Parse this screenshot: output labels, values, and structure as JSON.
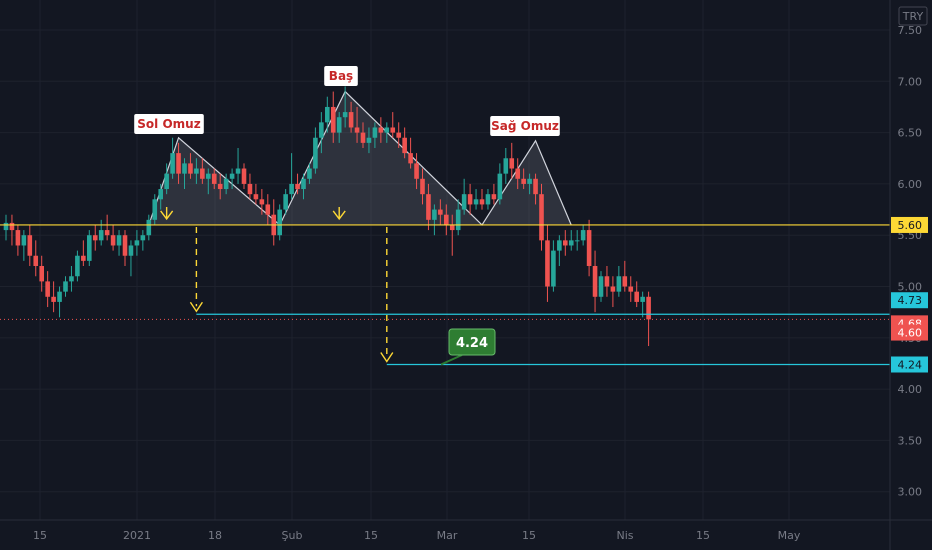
{
  "currency_badge": "TRY",
  "colors": {
    "background": "#131722",
    "grid": "#1e222d",
    "up": "#26a69a",
    "down": "#ef5350",
    "neckline": "#fdd835",
    "target": "#26c6da",
    "pattern_fill": "#787b86",
    "label_text": "#c62828",
    "target_label_bg": "#2e7d32"
  },
  "chart_data": {
    "type": "candlestick",
    "symbol_currency": "TRY",
    "y_axis": {
      "range": [
        2.9,
        7.5
      ],
      "ticks": [
        3.0,
        3.5,
        4.0,
        4.5,
        5.0,
        5.5,
        6.0,
        6.5,
        7.0,
        7.5
      ],
      "tick_labels": [
        "3.00",
        "3.50",
        "4.00",
        "4.50",
        "5.00",
        "5.50",
        "6.00",
        "6.50",
        "7.00",
        "7.50"
      ]
    },
    "x_axis": {
      "tick_labels": [
        "15",
        "2021",
        "18",
        "Şub",
        "15",
        "Mar",
        "15",
        "Nis",
        "15",
        "May"
      ]
    },
    "candles": [
      {
        "o": 5.55,
        "h": 5.7,
        "l": 5.45,
        "c": 5.62
      },
      {
        "o": 5.62,
        "h": 5.7,
        "l": 5.4,
        "c": 5.55
      },
      {
        "o": 5.55,
        "h": 5.6,
        "l": 5.3,
        "c": 5.4
      },
      {
        "o": 5.4,
        "h": 5.55,
        "l": 5.25,
        "c": 5.5
      },
      {
        "o": 5.5,
        "h": 5.6,
        "l": 5.2,
        "c": 5.3
      },
      {
        "o": 5.3,
        "h": 5.45,
        "l": 5.1,
        "c": 5.2
      },
      {
        "o": 5.2,
        "h": 5.3,
        "l": 4.95,
        "c": 5.05
      },
      {
        "o": 5.05,
        "h": 5.15,
        "l": 4.8,
        "c": 4.9
      },
      {
        "o": 4.9,
        "h": 5.05,
        "l": 4.75,
        "c": 4.85
      },
      {
        "o": 4.85,
        "h": 5.0,
        "l": 4.7,
        "c": 4.95
      },
      {
        "o": 4.95,
        "h": 5.1,
        "l": 4.9,
        "c": 5.05
      },
      {
        "o": 5.05,
        "h": 5.2,
        "l": 4.95,
        "c": 5.1
      },
      {
        "o": 5.1,
        "h": 5.35,
        "l": 5.05,
        "c": 5.3
      },
      {
        "o": 5.3,
        "h": 5.45,
        "l": 5.2,
        "c": 5.25
      },
      {
        "o": 5.25,
        "h": 5.55,
        "l": 5.2,
        "c": 5.5
      },
      {
        "o": 5.5,
        "h": 5.6,
        "l": 5.35,
        "c": 5.45
      },
      {
        "o": 5.45,
        "h": 5.65,
        "l": 5.4,
        "c": 5.55
      },
      {
        "o": 5.55,
        "h": 5.7,
        "l": 5.45,
        "c": 5.5
      },
      {
        "o": 5.5,
        "h": 5.6,
        "l": 5.35,
        "c": 5.4
      },
      {
        "o": 5.4,
        "h": 5.55,
        "l": 5.3,
        "c": 5.5
      },
      {
        "o": 5.5,
        "h": 5.55,
        "l": 5.2,
        "c": 5.3
      },
      {
        "o": 5.3,
        "h": 5.45,
        "l": 5.1,
        "c": 5.4
      },
      {
        "o": 5.4,
        "h": 5.55,
        "l": 5.3,
        "c": 5.45
      },
      {
        "o": 5.45,
        "h": 5.55,
        "l": 5.35,
        "c": 5.5
      },
      {
        "o": 5.5,
        "h": 5.7,
        "l": 5.45,
        "c": 5.65
      },
      {
        "o": 5.65,
        "h": 5.9,
        "l": 5.6,
        "c": 5.85
      },
      {
        "o": 5.85,
        "h": 6.0,
        "l": 5.75,
        "c": 5.95
      },
      {
        "o": 5.95,
        "h": 6.2,
        "l": 5.9,
        "c": 6.1
      },
      {
        "o": 6.1,
        "h": 6.45,
        "l": 6.05,
        "c": 6.3
      },
      {
        "o": 6.3,
        "h": 6.4,
        "l": 6.0,
        "c": 6.1
      },
      {
        "o": 6.1,
        "h": 6.25,
        "l": 5.95,
        "c": 6.2
      },
      {
        "o": 6.2,
        "h": 6.3,
        "l": 6.05,
        "c": 6.1
      },
      {
        "o": 6.1,
        "h": 6.25,
        "l": 6.0,
        "c": 6.15
      },
      {
        "o": 6.15,
        "h": 6.25,
        "l": 6.0,
        "c": 6.05
      },
      {
        "o": 6.05,
        "h": 6.15,
        "l": 5.9,
        "c": 6.1
      },
      {
        "o": 6.1,
        "h": 6.15,
        "l": 5.95,
        "c": 6.0
      },
      {
        "o": 6.0,
        "h": 6.1,
        "l": 5.85,
        "c": 5.95
      },
      {
        "o": 5.95,
        "h": 6.1,
        "l": 5.9,
        "c": 6.05
      },
      {
        "o": 6.05,
        "h": 6.15,
        "l": 5.95,
        "c": 6.1
      },
      {
        "o": 6.1,
        "h": 6.35,
        "l": 6.0,
        "c": 6.15
      },
      {
        "o": 6.15,
        "h": 6.2,
        "l": 5.95,
        "c": 6.0
      },
      {
        "o": 6.0,
        "h": 6.1,
        "l": 5.85,
        "c": 5.9
      },
      {
        "o": 5.9,
        "h": 6.0,
        "l": 5.8,
        "c": 5.85
      },
      {
        "o": 5.85,
        "h": 5.95,
        "l": 5.7,
        "c": 5.8
      },
      {
        "o": 5.8,
        "h": 5.9,
        "l": 5.6,
        "c": 5.7
      },
      {
        "o": 5.7,
        "h": 5.85,
        "l": 5.4,
        "c": 5.5
      },
      {
        "o": 5.5,
        "h": 5.8,
        "l": 5.45,
        "c": 5.75
      },
      {
        "o": 5.75,
        "h": 5.95,
        "l": 5.7,
        "c": 5.9
      },
      {
        "o": 5.9,
        "h": 6.3,
        "l": 5.85,
        "c": 6.0
      },
      {
        "o": 6.0,
        "h": 6.1,
        "l": 5.9,
        "c": 5.95
      },
      {
        "o": 5.95,
        "h": 6.1,
        "l": 5.85,
        "c": 6.05
      },
      {
        "o": 6.05,
        "h": 6.2,
        "l": 6.0,
        "c": 6.15
      },
      {
        "o": 6.15,
        "h": 6.55,
        "l": 6.1,
        "c": 6.45
      },
      {
        "o": 6.45,
        "h": 6.7,
        "l": 6.3,
        "c": 6.6
      },
      {
        "o": 6.6,
        "h": 6.85,
        "l": 6.5,
        "c": 6.75
      },
      {
        "o": 6.75,
        "h": 6.9,
        "l": 6.4,
        "c": 6.5
      },
      {
        "o": 6.5,
        "h": 6.7,
        "l": 6.4,
        "c": 6.65
      },
      {
        "o": 6.65,
        "h": 6.95,
        "l": 6.55,
        "c": 6.7
      },
      {
        "o": 6.7,
        "h": 6.8,
        "l": 6.5,
        "c": 6.55
      },
      {
        "o": 6.55,
        "h": 6.75,
        "l": 6.4,
        "c": 6.5
      },
      {
        "o": 6.5,
        "h": 6.6,
        "l": 6.35,
        "c": 6.4
      },
      {
        "o": 6.4,
        "h": 6.55,
        "l": 6.3,
        "c": 6.45
      },
      {
        "o": 6.45,
        "h": 6.6,
        "l": 6.35,
        "c": 6.55
      },
      {
        "o": 6.55,
        "h": 6.65,
        "l": 6.4,
        "c": 6.5
      },
      {
        "o": 6.5,
        "h": 6.6,
        "l": 6.4,
        "c": 6.55
      },
      {
        "o": 6.55,
        "h": 6.7,
        "l": 6.45,
        "c": 6.5
      },
      {
        "o": 6.5,
        "h": 6.6,
        "l": 6.35,
        "c": 6.45
      },
      {
        "o": 6.45,
        "h": 6.55,
        "l": 6.25,
        "c": 6.3
      },
      {
        "o": 6.3,
        "h": 6.45,
        "l": 6.15,
        "c": 6.2
      },
      {
        "o": 6.2,
        "h": 6.3,
        "l": 5.95,
        "c": 6.05
      },
      {
        "o": 6.05,
        "h": 6.15,
        "l": 5.8,
        "c": 5.9
      },
      {
        "o": 5.9,
        "h": 6.0,
        "l": 5.55,
        "c": 5.65
      },
      {
        "o": 5.65,
        "h": 5.8,
        "l": 5.5,
        "c": 5.75
      },
      {
        "o": 5.75,
        "h": 5.85,
        "l": 5.6,
        "c": 5.7
      },
      {
        "o": 5.7,
        "h": 5.8,
        "l": 5.5,
        "c": 5.6
      },
      {
        "o": 5.6,
        "h": 5.7,
        "l": 5.3,
        "c": 5.55
      },
      {
        "o": 5.55,
        "h": 5.85,
        "l": 5.5,
        "c": 5.75
      },
      {
        "o": 5.75,
        "h": 6.05,
        "l": 5.7,
        "c": 5.9
      },
      {
        "o": 5.9,
        "h": 6.0,
        "l": 5.7,
        "c": 5.8
      },
      {
        "o": 5.8,
        "h": 5.95,
        "l": 5.75,
        "c": 5.85
      },
      {
        "o": 5.85,
        "h": 5.95,
        "l": 5.75,
        "c": 5.8
      },
      {
        "o": 5.8,
        "h": 5.95,
        "l": 5.75,
        "c": 5.9
      },
      {
        "o": 5.9,
        "h": 6.0,
        "l": 5.8,
        "c": 5.85
      },
      {
        "o": 5.85,
        "h": 6.2,
        "l": 5.8,
        "c": 6.1
      },
      {
        "o": 6.1,
        "h": 6.35,
        "l": 6.0,
        "c": 6.25
      },
      {
        "o": 6.25,
        "h": 6.4,
        "l": 6.05,
        "c": 6.15
      },
      {
        "o": 6.15,
        "h": 6.25,
        "l": 5.95,
        "c": 6.05
      },
      {
        "o": 6.05,
        "h": 6.15,
        "l": 5.95,
        "c": 6.0
      },
      {
        "o": 6.0,
        "h": 6.1,
        "l": 5.9,
        "c": 6.05
      },
      {
        "o": 6.05,
        "h": 6.1,
        "l": 5.8,
        "c": 5.9
      },
      {
        "o": 5.9,
        "h": 6.0,
        "l": 5.35,
        "c": 5.45
      },
      {
        "o": 5.45,
        "h": 5.6,
        "l": 4.85,
        "c": 5.0
      },
      {
        "o": 5.0,
        "h": 5.45,
        "l": 4.95,
        "c": 5.35
      },
      {
        "o": 5.35,
        "h": 5.5,
        "l": 5.2,
        "c": 5.45
      },
      {
        "o": 5.45,
        "h": 5.55,
        "l": 5.3,
        "c": 5.4
      },
      {
        "o": 5.4,
        "h": 5.55,
        "l": 5.35,
        "c": 5.45
      },
      {
        "o": 5.45,
        "h": 5.55,
        "l": 5.35,
        "c": 5.45
      },
      {
        "o": 5.45,
        "h": 5.6,
        "l": 5.4,
        "c": 5.55
      },
      {
        "o": 5.55,
        "h": 5.65,
        "l": 5.1,
        "c": 5.2
      },
      {
        "o": 5.2,
        "h": 5.35,
        "l": 4.75,
        "c": 4.9
      },
      {
        "o": 4.9,
        "h": 5.15,
        "l": 4.85,
        "c": 5.1
      },
      {
        "o": 5.1,
        "h": 5.2,
        "l": 4.9,
        "c": 5.0
      },
      {
        "o": 5.0,
        "h": 5.1,
        "l": 4.8,
        "c": 4.95
      },
      {
        "o": 4.95,
        "h": 5.2,
        "l": 4.9,
        "c": 5.1
      },
      {
        "o": 5.1,
        "h": 5.25,
        "l": 4.95,
        "c": 5.0
      },
      {
        "o": 5.0,
        "h": 5.1,
        "l": 4.85,
        "c": 4.95
      },
      {
        "o": 4.95,
        "h": 5.05,
        "l": 4.8,
        "c": 4.85
      },
      {
        "o": 4.85,
        "h": 4.95,
        "l": 4.7,
        "c": 4.9
      },
      {
        "o": 4.9,
        "h": 4.95,
        "l": 4.42,
        "c": 4.68
      }
    ],
    "neckline": {
      "price": 5.6,
      "label": "5.60"
    },
    "price_tags": [
      {
        "value": 5.6,
        "label": "5.60",
        "kind": "neckline"
      },
      {
        "value": 4.73,
        "label": "4.73",
        "kind": "target1"
      },
      {
        "value": 4.68,
        "label": "4.68",
        "kind": "last"
      },
      {
        "value": 4.6,
        "label": "4.60",
        "kind": "down"
      },
      {
        "value": 4.24,
        "label": "4.24",
        "kind": "target2"
      }
    ],
    "annotations": {
      "left_shoulder": "Sol Omuz",
      "head": "Baş",
      "right_shoulder": "Sağ Omuz",
      "target_label": "4.24"
    },
    "pattern_points": [
      {
        "i": 24,
        "p": 5.6
      },
      {
        "i": 29,
        "p": 6.45
      },
      {
        "i": 46,
        "p": 5.6
      },
      {
        "i": 57,
        "p": 6.9
      },
      {
        "i": 80,
        "p": 5.6
      },
      {
        "i": 89,
        "p": 6.42
      },
      {
        "i": 95,
        "p": 5.6
      }
    ],
    "targets": [
      {
        "price": 4.73,
        "from_index": 32
      },
      {
        "price": 4.24,
        "from_index": 64
      }
    ],
    "grid": true
  }
}
